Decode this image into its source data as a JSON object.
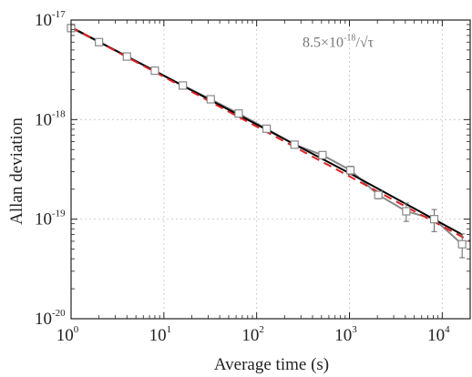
{
  "chart_data": {
    "type": "line",
    "title": "",
    "xlabel": "Average time (s)",
    "ylabel": "Allan deviation",
    "xscale": "log",
    "yscale": "log",
    "xlim": [
      1,
      20000
    ],
    "ylim": [
      1e-20,
      1e-17
    ],
    "grid": true,
    "x_ticks": [
      {
        "base": "10",
        "exp": "0",
        "value": 1
      },
      {
        "base": "10",
        "exp": "1",
        "value": 10
      },
      {
        "base": "10",
        "exp": "2",
        "value": 100
      },
      {
        "base": "10",
        "exp": "3",
        "value": 1000
      },
      {
        "base": "10",
        "exp": "4",
        "value": 10000
      }
    ],
    "y_ticks": [
      {
        "base": "10",
        "exp": "-17",
        "value": 1e-17
      },
      {
        "base": "10",
        "exp": "-18",
        "value": 1e-18
      },
      {
        "base": "10",
        "exp": "-19",
        "value": 1e-19
      },
      {
        "base": "10",
        "exp": "-20",
        "value": 1e-20
      }
    ],
    "annotation": {
      "prefix": "8.5×10",
      "exp": "-18",
      "suffix": "/√τ",
      "anchor_x": 2500,
      "anchor_y": 6e-18
    },
    "series": [
      {
        "kind": "measured",
        "color": "#888888",
        "marker": "square",
        "x": [
          1,
          2,
          4,
          8,
          16,
          32,
          64,
          128,
          256,
          512,
          1024,
          2048,
          4096,
          8192,
          16384
        ],
        "y": [
          8.3e-18,
          6e-18,
          4.3e-18,
          3.1e-18,
          2.2e-18,
          1.6e-18,
          1.15e-18,
          8.1e-19,
          5.6e-19,
          4.4e-19,
          3.1e-19,
          1.75e-19,
          1.2e-19,
          1e-19,
          5.6e-20
        ],
        "yerr": [
          0,
          0,
          0,
          0,
          8e-20,
          8e-20,
          8e-20,
          5e-20,
          4e-21,
          3e-20,
          3e-20,
          1.5e-20,
          2.5e-20,
          2.5e-20,
          1.5e-20
        ]
      },
      {
        "kind": "fit-black",
        "color": "#000000",
        "x": [
          1,
          1000,
          16384
        ],
        "y": [
          8.5e-18,
          2.9e-19,
          7e-20
        ]
      },
      {
        "kind": "fit-red-dashed",
        "color": "#e02020",
        "coef": 8.5e-18,
        "x_range": [
          1,
          20000
        ]
      }
    ]
  }
}
